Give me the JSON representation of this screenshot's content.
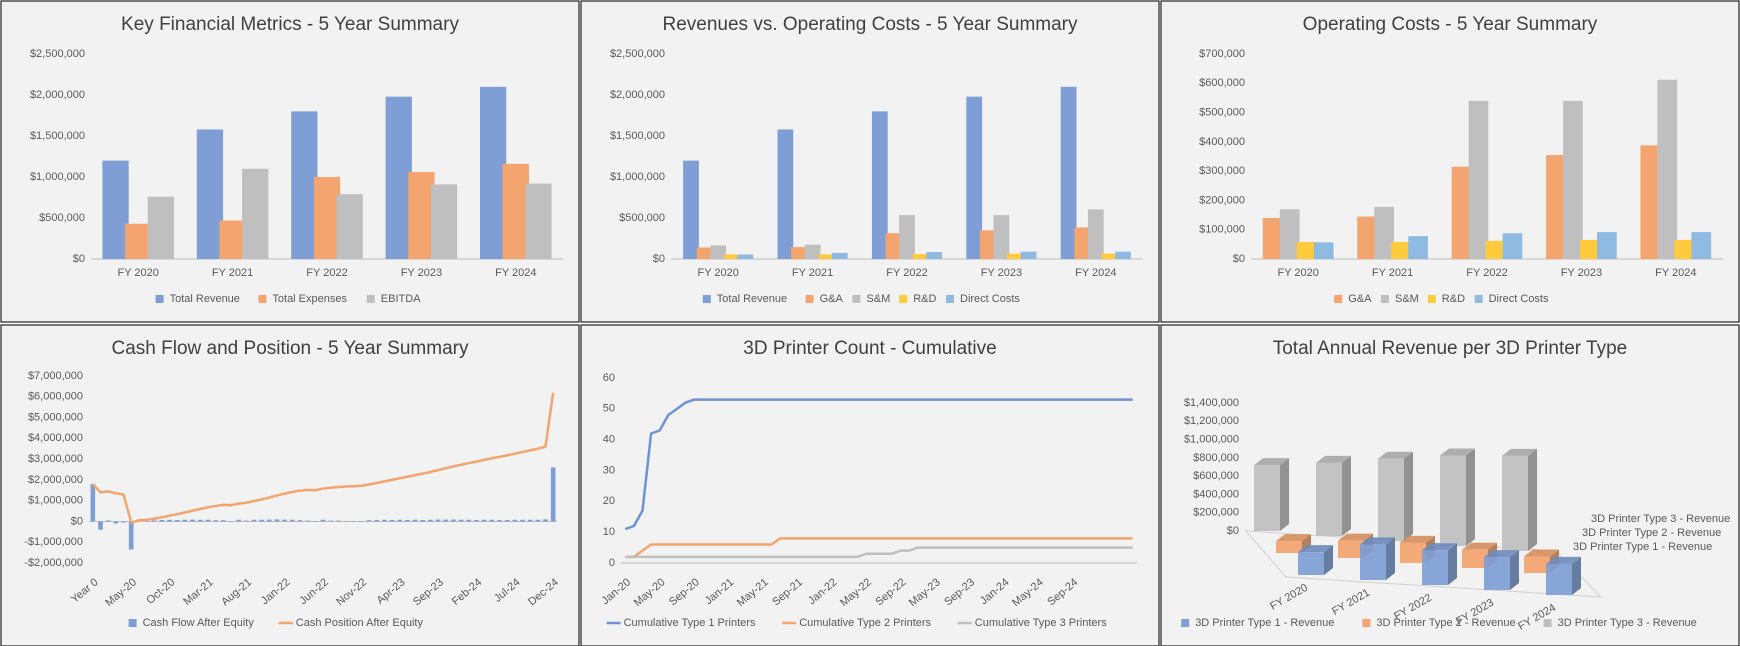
{
  "chart_data": [
    {
      "type": "bar",
      "title": "Key Financial Metrics - 5 Year Summary",
      "categories": [
        "FY 2020",
        "FY 2021",
        "FY 2022",
        "FY 2023",
        "FY 2024"
      ],
      "ylim": [
        0,
        2500000
      ],
      "yticks": [
        {
          "value": 0,
          "label": "$0"
        },
        {
          "value": 500000,
          "label": "$500,000"
        },
        {
          "value": 1000000,
          "label": "$1,000,000"
        },
        {
          "value": 1500000,
          "label": "$1,500,000"
        },
        {
          "value": 2000000,
          "label": "$2,000,000"
        },
        {
          "value": 2500000,
          "label": "$2,500,000"
        }
      ],
      "grid": false,
      "series": [
        {
          "name": "Total Revenue",
          "color": "#7f9ed6",
          "values": [
            1200000,
            1580000,
            1800000,
            1980000,
            2100000
          ]
        },
        {
          "name": "Total Expenses",
          "color": "#f4a46e",
          "values": [
            430000,
            470000,
            1000000,
            1060000,
            1160000
          ]
        },
        {
          "name": "EBITDA",
          "color": "#bfbfbf",
          "values": [
            760000,
            1100000,
            790000,
            910000,
            920000
          ]
        }
      ]
    },
    {
      "type": "bar",
      "title": "Revenues vs. Operating Costs - 5 Year Summary",
      "categories": [
        "FY 2020",
        "FY 2021",
        "FY 2022",
        "FY 2023",
        "FY 2024"
      ],
      "ylim": [
        0,
        2500000
      ],
      "yticks": [
        {
          "value": 0,
          "label": "$0"
        },
        {
          "value": 500000,
          "label": "$500,000"
        },
        {
          "value": 1000000,
          "label": "$1,000,000"
        },
        {
          "value": 1500000,
          "label": "$1,500,000"
        },
        {
          "value": 2000000,
          "label": "$2,000,000"
        },
        {
          "value": 2500000,
          "label": "$2,500,000"
        }
      ],
      "grid": false,
      "series": [
        {
          "name": "Total Revenue",
          "color": "#7f9ed6",
          "values": [
            1200000,
            1580000,
            1800000,
            1980000,
            2100000
          ]
        },
        {
          "name": "G&A",
          "color": "#f4a46e",
          "values": [
            140000,
            145000,
            315000,
            350000,
            385000
          ]
        },
        {
          "name": "S&M",
          "color": "#bfbfbf",
          "values": [
            165000,
            175000,
            535000,
            535000,
            605000
          ]
        },
        {
          "name": "R&D",
          "color": "#ffcb3c",
          "values": [
            55000,
            55000,
            60000,
            65000,
            65000
          ]
        },
        {
          "name": "Direct Costs",
          "color": "#8fbbe3",
          "values": [
            55000,
            75000,
            85000,
            90000,
            90000
          ]
        }
      ]
    },
    {
      "type": "bar",
      "title": "Operating Costs - 5 Year Summary",
      "categories": [
        "FY 2020",
        "FY 2021",
        "FY 2022",
        "FY 2023",
        "FY 2024"
      ],
      "ylim": [
        0,
        700000
      ],
      "yticks": [
        {
          "value": 0,
          "label": "$0"
        },
        {
          "value": 100000,
          "label": "$100,000"
        },
        {
          "value": 200000,
          "label": "$200,000"
        },
        {
          "value": 300000,
          "label": "$300,000"
        },
        {
          "value": 400000,
          "label": "$400,000"
        },
        {
          "value": 500000,
          "label": "$500,000"
        },
        {
          "value": 600000,
          "label": "$600,000"
        },
        {
          "value": 700000,
          "label": "$700,000"
        }
      ],
      "grid": false,
      "series": [
        {
          "name": "G&A",
          "color": "#f4a46e",
          "values": [
            140000,
            145000,
            315000,
            355000,
            388000
          ]
        },
        {
          "name": "S&M",
          "color": "#bfbfbf",
          "values": [
            170000,
            178000,
            540000,
            540000,
            612000
          ]
        },
        {
          "name": "R&D",
          "color": "#ffcb3c",
          "values": [
            58000,
            58000,
            62000,
            65000,
            65000
          ]
        },
        {
          "name": "Direct Costs",
          "color": "#8fbbe3",
          "values": [
            57000,
            78000,
            88000,
            92000,
            92000
          ]
        }
      ]
    },
    {
      "type": "combo",
      "title": "Cash Flow and Position - 5 Year Summary",
      "categories": [
        "Year 0",
        null,
        null,
        null,
        null,
        "May-20",
        null,
        null,
        null,
        null,
        "Oct-20",
        null,
        null,
        null,
        null,
        "Mar-21",
        null,
        null,
        null,
        null,
        "Aug-21",
        null,
        null,
        null,
        null,
        "Jan-22",
        null,
        null,
        null,
        null,
        "Jun-22",
        null,
        null,
        null,
        null,
        "Nov-22",
        null,
        null,
        null,
        null,
        "Apr-23",
        null,
        null,
        null,
        null,
        "Sep-23",
        null,
        null,
        null,
        null,
        "Feb-24",
        null,
        null,
        null,
        null,
        "Jul-24",
        null,
        null,
        null,
        null,
        "Dec-24"
      ],
      "ylim": [
        -2000000,
        7000000
      ],
      "yticks": [
        {
          "value": -2000000,
          "label": "-$2,000,000"
        },
        {
          "value": -1000000,
          "label": "-$1,000,000"
        },
        {
          "value": 0,
          "label": "$0"
        },
        {
          "value": 1000000,
          "label": "$1,000,000"
        },
        {
          "value": 2000000,
          "label": "$2,000,000"
        },
        {
          "value": 3000000,
          "label": "$3,000,000"
        },
        {
          "value": 4000000,
          "label": "$4,000,000"
        },
        {
          "value": 5000000,
          "label": "$5,000,000"
        },
        {
          "value": 6000000,
          "label": "$6,000,000"
        },
        {
          "value": 7000000,
          "label": "$7,000,000"
        }
      ],
      "grid": false,
      "series": [
        {
          "name": "Cash Flow After Equity",
          "type": "bar",
          "color": "#7f9ed6",
          "values": [
            1800000,
            -400000,
            50000,
            -100000,
            -50000,
            -1350000,
            100000,
            30000,
            50000,
            70000,
            80000,
            70000,
            80000,
            90000,
            80000,
            80000,
            60000,
            60000,
            -20000,
            80000,
            40000,
            80000,
            80000,
            90000,
            100000,
            90000,
            80000,
            60000,
            40000,
            -20000,
            80000,
            40000,
            40000,
            20000,
            20000,
            20000,
            60000,
            70000,
            80000,
            70000,
            80000,
            70000,
            80000,
            70000,
            80000,
            90000,
            90000,
            90000,
            80000,
            80000,
            70000,
            80000,
            80000,
            70000,
            70000,
            80000,
            80000,
            80000,
            80000,
            100000,
            2600000
          ]
        },
        {
          "name": "Cash Position After Equity",
          "type": "line",
          "color": "#f4a46e",
          "values": [
            1800000,
            1400000,
            1450000,
            1350000,
            1300000,
            -50000,
            50000,
            80000,
            130000,
            200000,
            280000,
            350000,
            430000,
            520000,
            600000,
            680000,
            740000,
            800000,
            780000,
            860000,
            900000,
            980000,
            1060000,
            1150000,
            1250000,
            1340000,
            1420000,
            1480000,
            1520000,
            1500000,
            1580000,
            1620000,
            1660000,
            1680000,
            1700000,
            1720000,
            1780000,
            1850000,
            1930000,
            2000000,
            2080000,
            2150000,
            2230000,
            2300000,
            2380000,
            2470000,
            2560000,
            2650000,
            2730000,
            2810000,
            2880000,
            2960000,
            3040000,
            3110000,
            3180000,
            3260000,
            3340000,
            3420000,
            3500000,
            3600000,
            6200000
          ]
        }
      ]
    },
    {
      "type": "line",
      "title": "3D Printer Count - Cumulative",
      "categories": [
        "Jan-20",
        null,
        null,
        null,
        "May-20",
        null,
        null,
        null,
        "Sep-20",
        null,
        null,
        null,
        "Jan-21",
        null,
        null,
        null,
        "May-21",
        null,
        null,
        null,
        "Sep-21",
        null,
        null,
        null,
        "Jan-22",
        null,
        null,
        null,
        "May-22",
        null,
        null,
        null,
        "Sep-22",
        null,
        null,
        null,
        "May-23",
        null,
        null,
        null,
        "Sep-23",
        null,
        null,
        null,
        "Jan-24",
        null,
        null,
        null,
        "May-24",
        null,
        null,
        null,
        "Sep-24",
        null,
        null,
        null,
        null,
        null,
        null,
        null
      ],
      "ylim": [
        0,
        60
      ],
      "yticks": [
        0,
        10,
        20,
        30,
        40,
        50,
        60
      ],
      "grid": false,
      "series": [
        {
          "name": "Cumulative Type 1 Printers",
          "color": "#6f93d2",
          "values": [
            11,
            12,
            17,
            42,
            43,
            48,
            50,
            52,
            53,
            53,
            53,
            53,
            53,
            53,
            53,
            53,
            53,
            53,
            53,
            53,
            53,
            53,
            53,
            53,
            53,
            53,
            53,
            53,
            53,
            53,
            53,
            53,
            53,
            53,
            53,
            53,
            53,
            53,
            53,
            53,
            53,
            53,
            53,
            53,
            53,
            53,
            53,
            53,
            53,
            53,
            53,
            53,
            53,
            53,
            53,
            53,
            53,
            53,
            53,
            53
          ]
        },
        {
          "name": "Cumulative Type 2 Printers",
          "color": "#f4a46e",
          "values": [
            2,
            2,
            4,
            6,
            6,
            6,
            6,
            6,
            6,
            6,
            6,
            6,
            6,
            6,
            6,
            6,
            6,
            6,
            8,
            8,
            8,
            8,
            8,
            8,
            8,
            8,
            8,
            8,
            8,
            8,
            8,
            8,
            8,
            8,
            8,
            8,
            8,
            8,
            8,
            8,
            8,
            8,
            8,
            8,
            8,
            8,
            8,
            8,
            8,
            8,
            8,
            8,
            8,
            8,
            8,
            8,
            8,
            8,
            8,
            8
          ]
        },
        {
          "name": "Cumulative Type 3 Printers",
          "color": "#bfbfbf",
          "values": [
            2,
            2,
            2,
            2,
            2,
            2,
            2,
            2,
            2,
            2,
            2,
            2,
            2,
            2,
            2,
            2,
            2,
            2,
            2,
            2,
            2,
            2,
            2,
            2,
            2,
            2,
            2,
            2,
            3,
            3,
            3,
            3,
            4,
            4,
            5,
            5,
            5,
            5,
            5,
            5,
            5,
            5,
            5,
            5,
            5,
            5,
            5,
            5,
            5,
            5,
            5,
            5,
            5,
            5,
            5,
            5,
            5,
            5,
            5,
            5
          ]
        }
      ]
    },
    {
      "type": "bar3d",
      "title": "Total Annual Revenue per 3D Printer Type",
      "categories": [
        "FY 2020",
        "FY 2021",
        "FY 2022",
        "FY 2023",
        "FY 2024"
      ],
      "ylim": [
        0,
        1400000
      ],
      "yticks": [
        {
          "value": 0,
          "label": "$0"
        },
        {
          "value": 200000,
          "label": "$200,000"
        },
        {
          "value": 400000,
          "label": "$400,000"
        },
        {
          "value": 600000,
          "label": "$600,000"
        },
        {
          "value": 800000,
          "label": "$800,000"
        },
        {
          "value": 1000000,
          "label": "$1,000,000"
        },
        {
          "value": 1200000,
          "label": "$1,200,000"
        },
        {
          "value": 1400000,
          "label": "$1,400,000"
        }
      ],
      "grid": false,
      "series": [
        {
          "name": "3D Printer Type 1 - Revenue",
          "color": "#7f9ed6",
          "values": [
            250000,
            390000,
            380000,
            360000,
            340000
          ]
        },
        {
          "name": "3D Printer Type 2 - Revenue",
          "color": "#f4a46e",
          "values": [
            130000,
            190000,
            220000,
            200000,
            180000
          ]
        },
        {
          "name": "3D Printer Type 3 - Revenue",
          "color": "#bfbfbf",
          "values": [
            720000,
            800000,
            900000,
            990000,
            1040000
          ]
        }
      ]
    }
  ]
}
